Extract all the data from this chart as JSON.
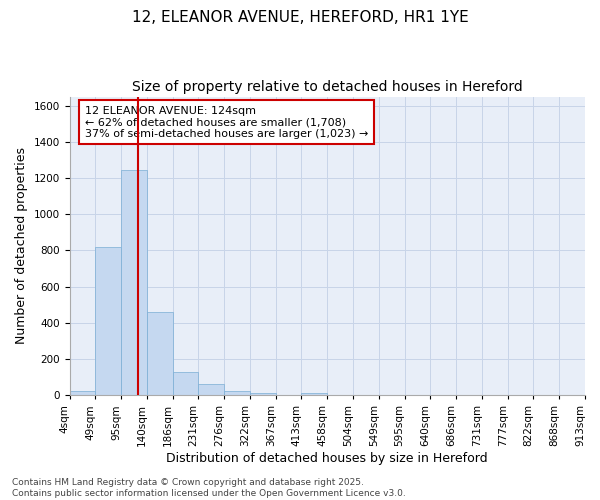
{
  "title_line1": "12, ELEANOR AVENUE, HEREFORD, HR1 1YE",
  "title_line2": "Size of property relative to detached houses in Hereford",
  "xlabel": "Distribution of detached houses by size in Hereford",
  "ylabel": "Number of detached properties",
  "bar_values": [
    25,
    820,
    1245,
    460,
    130,
    62,
    25,
    15,
    0,
    15,
    0,
    0,
    0,
    0,
    0,
    0,
    0,
    0,
    0,
    0
  ],
  "tick_labels": [
    "4sqm",
    "49sqm",
    "95sqm",
    "140sqm",
    "186sqm",
    "231sqm",
    "276sqm",
    "322sqm",
    "367sqm",
    "413sqm",
    "458sqm",
    "504sqm",
    "549sqm",
    "595sqm",
    "640sqm",
    "686sqm",
    "731sqm",
    "777sqm",
    "822sqm",
    "868sqm",
    "913sqm"
  ],
  "bar_color": "#c5d8f0",
  "bar_edge_color": "#7aadd4",
  "grid_color": "#c8d4e8",
  "background_color": "#ffffff",
  "plot_bg_color": "#e8eef8",
  "annotation_text": "12 ELEANOR AVENUE: 124sqm\n← 62% of detached houses are smaller (1,708)\n37% of semi-detached houses are larger (1,023) →",
  "annotation_box_facecolor": "#ffffff",
  "annotation_box_edge": "#cc0000",
  "vline_color": "#cc0000",
  "ylim": [
    0,
    1650
  ],
  "yticks": [
    0,
    200,
    400,
    600,
    800,
    1000,
    1200,
    1400,
    1600
  ],
  "footer_text": "Contains HM Land Registry data © Crown copyright and database right 2025.\nContains public sector information licensed under the Open Government Licence v3.0.",
  "title_fontsize": 11,
  "subtitle_fontsize": 10,
  "axis_label_fontsize": 9,
  "tick_fontsize": 7.5,
  "annotation_fontsize": 8,
  "footer_fontsize": 6.5
}
